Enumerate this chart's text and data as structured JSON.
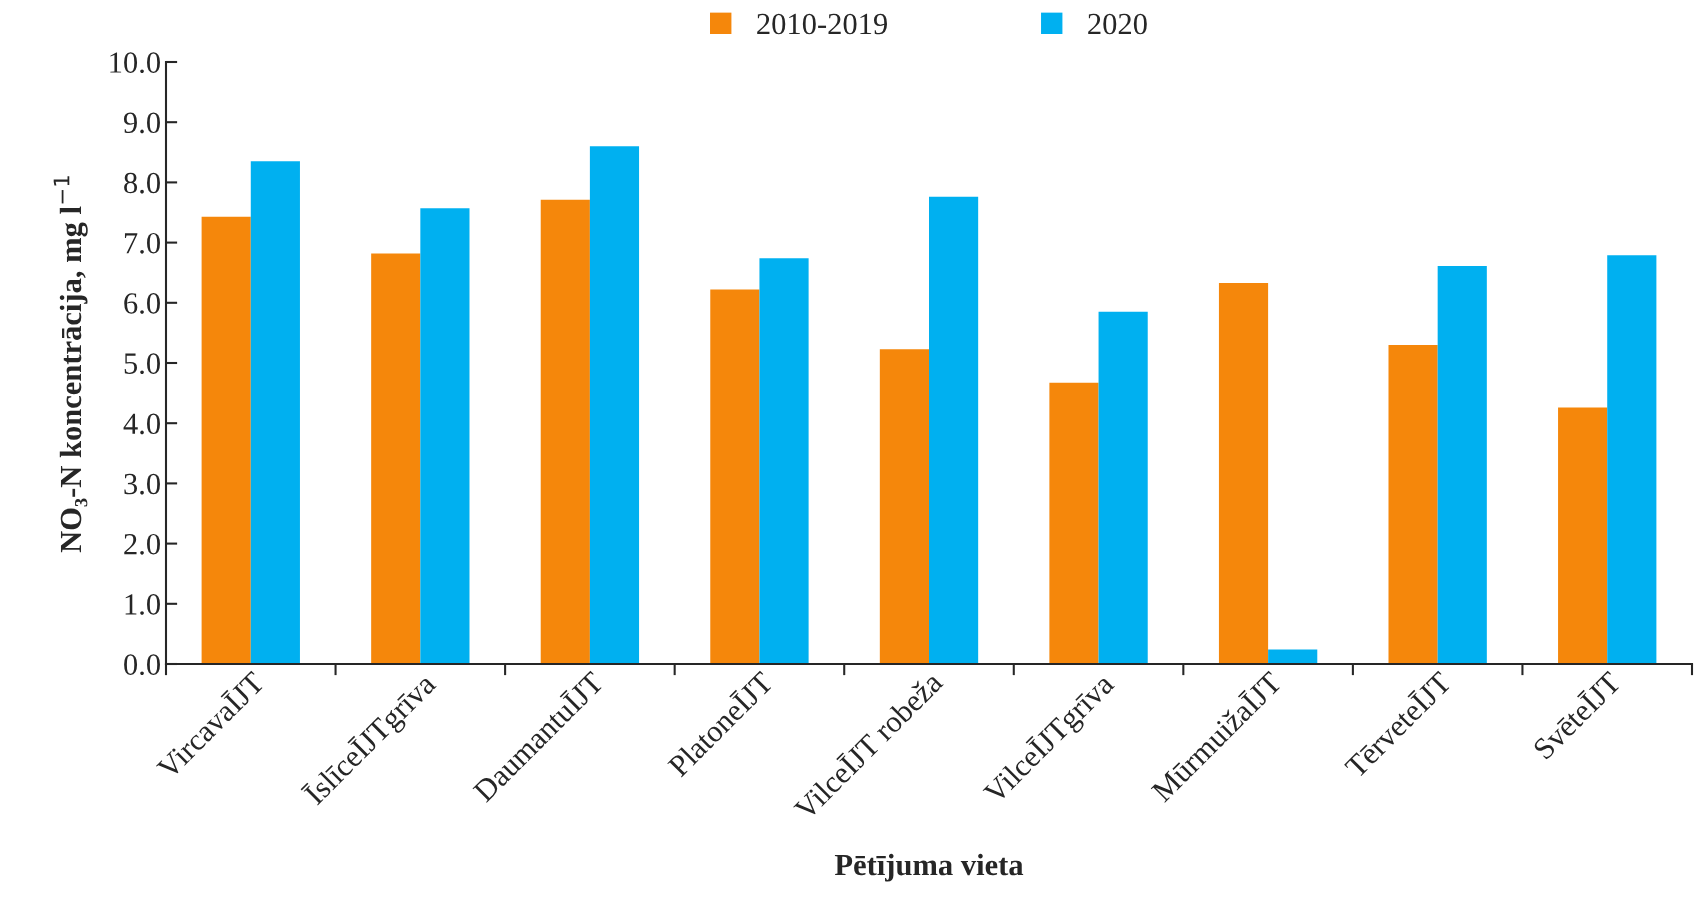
{
  "chart_data": {
    "type": "bar",
    "xlabel": "Pētījuma vieta",
    "ylabel": "NO₃-N koncentrācija, mg l$^{−1}$",
    "categories": [
      "VircavaĪJT",
      "ĪslīceĪJTgrīva",
      "DaumantuĪJT",
      "PlatoneĪJT",
      "VilceĪJT robeža",
      "VilceĪJTgrīva",
      "MūrmuižaĪJT",
      "TērveteĪJT",
      "SvēteĪJT"
    ],
    "series": [
      {
        "name": "2010-2019",
        "color": "#f5870b",
        "values": [
          7.43,
          6.82,
          7.71,
          6.22,
          5.23,
          4.67,
          6.33,
          5.3,
          4.26
        ]
      },
      {
        "name": "2020",
        "color": "#00b0f0",
        "values": [
          8.35,
          7.57,
          8.6,
          6.74,
          7.76,
          5.85,
          0.24,
          6.61,
          6.79
        ]
      }
    ],
    "ylim": [
      0,
      10
    ],
    "yticks": [
      {
        "value": 0,
        "label": "0.0"
      },
      {
        "value": 1,
        "label": "1.0"
      },
      {
        "value": 2,
        "label": "2.0"
      },
      {
        "value": 3,
        "label": "3.0"
      },
      {
        "value": 4,
        "label": "4.0"
      },
      {
        "value": 5,
        "label": "5.0"
      },
      {
        "value": 6,
        "label": "6.0"
      },
      {
        "value": 7,
        "label": "7.0"
      },
      {
        "value": 8,
        "label": "8.0"
      },
      {
        "value": 9,
        "label": "9.0"
      },
      {
        "value": 10,
        "label": "10.0"
      }
    ],
    "legend": "top",
    "grid": false
  }
}
